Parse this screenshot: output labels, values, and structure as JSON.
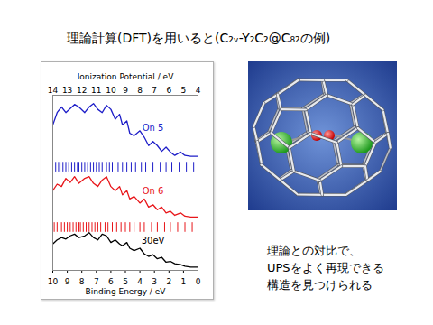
{
  "slide": {
    "title": "理論計算(DFT)を用いると(C₂ᵥ-Y₂C₂@C₈₂の例)",
    "caption": [
      "理論との対比で、",
      "UPSをよく再現できる",
      "構造を見つけられる"
    ]
  },
  "chart_data": {
    "type": "line",
    "xlabel": "Binding Energy / eV",
    "x2label": "Ionization Potential / eV",
    "xlim": [
      10,
      0
    ],
    "xticks": [
      10,
      9,
      8,
      7,
      6,
      5,
      4,
      3,
      2,
      1,
      0
    ],
    "x2lim": [
      14,
      4
    ],
    "x2ticks": [
      14,
      13,
      12,
      11,
      10,
      9,
      8,
      7,
      6,
      5,
      4
    ],
    "ylim": [
      0,
      10.3
    ],
    "tick_labels": "x",
    "x": [
      10,
      9.7,
      9.4,
      9.1,
      8.8,
      8.5,
      8.2,
      7.8,
      7.5,
      7.2,
      6.9,
      6.6,
      6.3,
      6.0,
      5.7,
      5.4,
      5.2,
      4.9,
      4.7,
      4.4,
      4.0,
      3.7,
      3.4,
      3.1,
      2.8,
      2.5,
      2.2,
      1.9,
      1.6,
      1.2,
      0.9,
      0.5,
      0
    ],
    "series": [
      {
        "name": "On 5",
        "color": "#1e1ec8",
        "values": [
          8.55,
          9.28,
          9.61,
          9.28,
          9.52,
          9.76,
          9.61,
          9.28,
          9.61,
          9.81,
          9.47,
          9.28,
          9.71,
          9.47,
          8.89,
          9.18,
          8.55,
          8.79,
          8.07,
          7.92,
          8.21,
          7.83,
          7.34,
          7.58,
          7.34,
          7.0,
          7.25,
          6.96,
          6.76,
          6.96,
          6.76,
          6.71,
          6.71
        ],
        "sticks": [
          9.8,
          9.6,
          9.5,
          9.3,
          9.1,
          8.9,
          8.7,
          8.5,
          8.3,
          8.2,
          8.0,
          7.8,
          7.6,
          7.4,
          7.2,
          7.0,
          6.8,
          6.6,
          6.3,
          6.1,
          5.9,
          5.5,
          5.2,
          4.9,
          4.6,
          4.3,
          3.9,
          3.6,
          3.1,
          2.6,
          2.2,
          1.8,
          1.3,
          0.8,
          0.3
        ],
        "stick_level": 6.1
      },
      {
        "name": "On 6",
        "color": "#e8161a",
        "values": [
          4.69,
          5.07,
          4.93,
          5.41,
          5.17,
          5.51,
          5.12,
          5.41,
          5.51,
          5.12,
          4.93,
          5.31,
          5.51,
          4.93,
          4.69,
          4.93,
          4.44,
          4.69,
          4.2,
          4.35,
          3.96,
          4.2,
          3.72,
          3.86,
          3.57,
          3.72,
          3.38,
          3.48,
          3.24,
          3.38,
          3.19,
          3.14,
          3.14
        ],
        "sticks": [
          9.9,
          9.7,
          9.5,
          9.4,
          9.2,
          9.0,
          8.8,
          8.6,
          8.4,
          8.2,
          8.1,
          7.9,
          7.7,
          7.5,
          7.3,
          7.1,
          6.9,
          6.7,
          6.4,
          6.2,
          5.9,
          5.6,
          5.3,
          5.0,
          4.7,
          4.4,
          4.0,
          3.7,
          3.2,
          2.8,
          2.3,
          1.9,
          1.4,
          0.9,
          0.4
        ],
        "stick_level": 2.55
      },
      {
        "name": "30eV",
        "color": "#000000",
        "values": [
          1.55,
          1.79,
          1.93,
          1.84,
          2.03,
          2.13,
          1.93,
          2.03,
          2.22,
          1.93,
          1.79,
          2.13,
          2.03,
          1.64,
          1.79,
          1.55,
          1.45,
          1.64,
          1.3,
          1.16,
          1.3,
          0.97,
          0.82,
          0.92,
          0.68,
          0.77,
          0.48,
          0.53,
          0.39,
          0.34,
          0.24,
          0.19,
          0.19
        ]
      }
    ]
  }
}
